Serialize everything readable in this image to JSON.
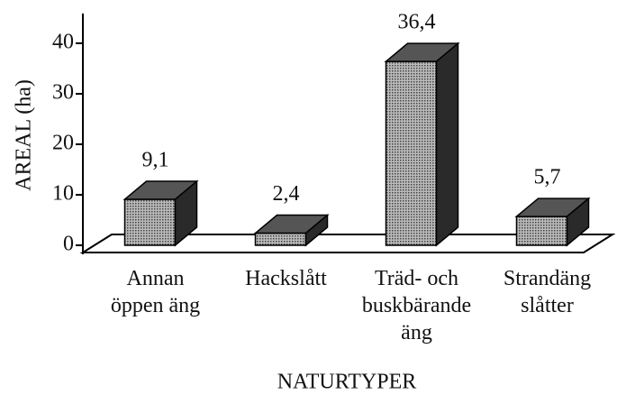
{
  "chart_data": {
    "type": "bar3d",
    "categories": [
      "Annan\nöppen äng",
      "Hackslått",
      "Träd- och\nbuskbärande\näng",
      "Strandäng\nslåtter"
    ],
    "values": [
      9.1,
      2.4,
      36.4,
      5.7
    ],
    "value_labels": [
      "9,1",
      "2,4",
      "36,4",
      "5,7"
    ],
    "ylabel": "AREAL (ha)",
    "xlabel": "NATURTYPER",
    "color": "#9a9a9a",
    "ylim": [
      0,
      45
    ],
    "yticks": [
      0,
      10,
      20,
      30,
      40
    ]
  }
}
